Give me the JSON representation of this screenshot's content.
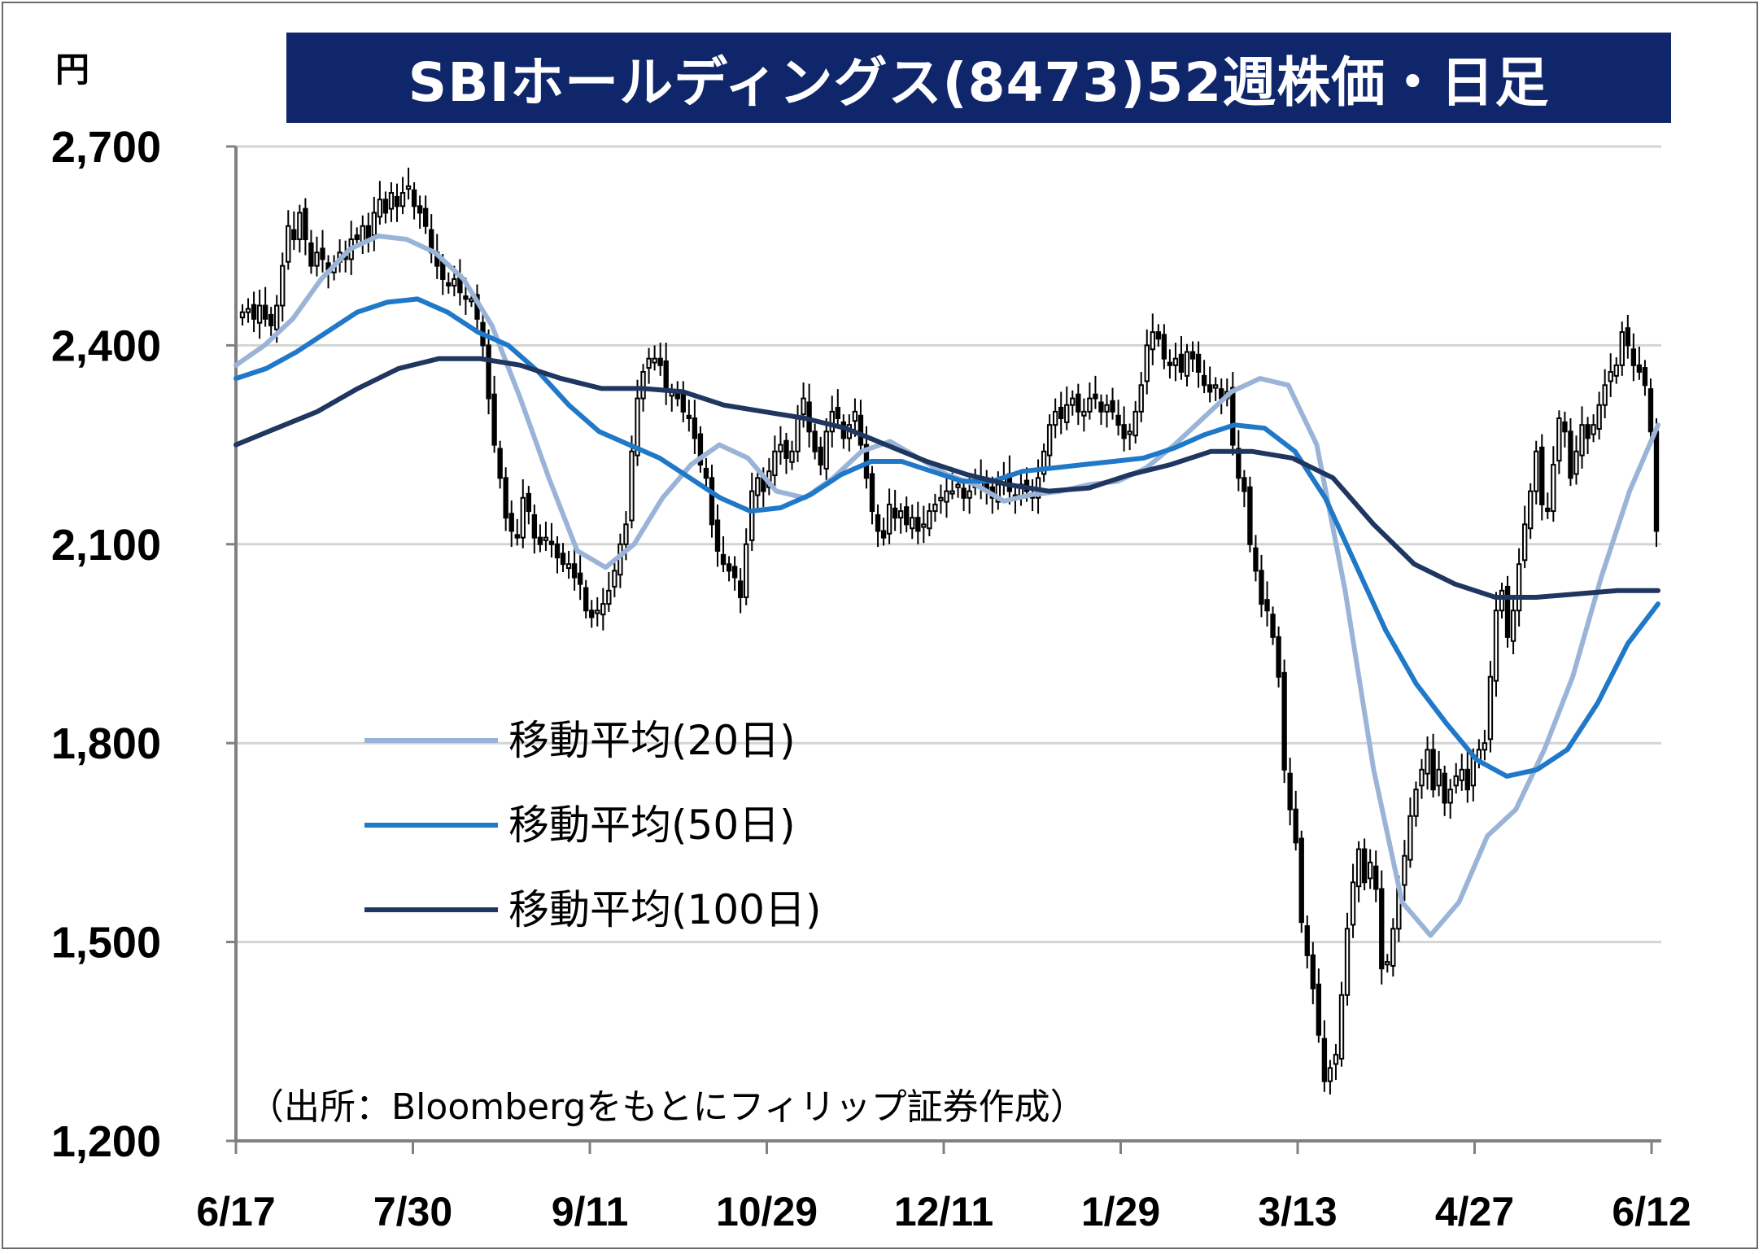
{
  "unit": "円",
  "chart_data": {
    "type": "candlestick",
    "title": "SBIホールディングス(8473)52週株価・日足",
    "ylim": [
      1200,
      2700
    ],
    "yticks": [
      1200,
      1500,
      1800,
      2100,
      2400,
      2700
    ],
    "ytick_labels": [
      "1,200",
      "1,500",
      "1,800",
      "2,100",
      "2,400",
      "2,700"
    ],
    "xtick_labels": [
      "6/17",
      "7/30",
      "9/11",
      "10/29",
      "12/11",
      "1/29",
      "3/13",
      "4/27",
      "6/12"
    ],
    "xlabel": "",
    "ylabel": "",
    "grid": true,
    "legend_position": "center-left",
    "source": "（出所：Bloombergをもとにフィリップ証券作成）",
    "candle_series": [
      {
        "x": "6/17",
        "price": [
          2450,
          2455,
          2440,
          2460,
          2440,
          2430,
          2460,
          2520,
          2580,
          2560,
          2600,
          2560,
          2520,
          2540,
          2530,
          2510,
          2520,
          2540,
          2530,
          2560,
          2560,
          2580,
          2560,
          2600,
          2620,
          2600,
          2630,
          2610,
          2630,
          2640,
          2610
        ]
      },
      {
        "x": "7/30",
        "price": [
          2600,
          2580,
          2540,
          2520,
          2500,
          2490,
          2500,
          2480,
          2470,
          2470,
          2440,
          2400,
          2320,
          2250,
          2200,
          2140,
          2120,
          2110,
          2170,
          2150,
          2110,
          2100,
          2110,
          2100,
          2080,
          2070,
          2070,
          2050,
          2040,
          2000,
          1990
        ]
      },
      {
        "x": "9/11",
        "price": [
          2000,
          2010,
          2030,
          2060,
          2100,
          2130,
          2240,
          2320,
          2360,
          2380,
          2380,
          2370,
          2330,
          2330,
          2320,
          2300,
          2290,
          2260,
          2220,
          2200,
          2130,
          2090,
          2070,
          2060,
          2050,
          2020,
          2100,
          2180,
          2200,
          2180,
          2210
        ]
      },
      {
        "x": "10/29",
        "price": [
          2240,
          2250,
          2230,
          2240,
          2290,
          2320,
          2270,
          2240,
          2220,
          2270,
          2300,
          2290,
          2260,
          2280,
          2300,
          2250,
          2200,
          2150,
          2120,
          2110,
          2160,
          2140,
          2150,
          2130,
          2140,
          2120,
          2130,
          2150,
          2160,
          2170,
          2180
        ]
      },
      {
        "x": "12/11",
        "price": [
          2180,
          2190,
          2170,
          2180,
          2190,
          2200,
          2180,
          2170,
          2190,
          2200,
          2180,
          2170,
          2190,
          2180,
          2170,
          2200,
          2240,
          2280,
          2300,
          2290,
          2310,
          2320,
          2300,
          2300,
          2320,
          2320,
          2300,
          2310,
          2300,
          2280,
          2260
        ]
      },
      {
        "x": "1/29",
        "price": [
          2270,
          2300,
          2340,
          2400,
          2420,
          2410,
          2380,
          2370,
          2380,
          2360,
          2390,
          2380,
          2360,
          2340,
          2330,
          2340,
          2320,
          2330,
          2250,
          2200,
          2180,
          2100,
          2060,
          2010,
          2000,
          1960,
          1900,
          1760,
          1700,
          1650,
          1530
        ]
      },
      {
        "x": "3/13",
        "price": [
          1480,
          1430,
          1360,
          1290,
          1310,
          1330,
          1420,
          1520,
          1590,
          1640,
          1590,
          1620,
          1580,
          1460,
          1470,
          1520,
          1580,
          1630,
          1690,
          1730,
          1760,
          1790,
          1730,
          1760,
          1710,
          1730,
          1750,
          1760,
          1730,
          1780,
          1790
        ]
      },
      {
        "x": "4/27",
        "price": [
          1800,
          1900,
          2000,
          2030,
          1960,
          2000,
          2070,
          2130,
          2180,
          2240,
          2160,
          2150,
          2220,
          2290,
          2270,
          2200,
          2240,
          2280,
          2260,
          2280,
          2310,
          2340,
          2360,
          2370,
          2420,
          2400,
          2370,
          2360,
          2340,
          2270,
          2120
        ]
      }
    ],
    "series": [
      {
        "name": "移動平均(20日)",
        "color": "#9ab4d8",
        "values": [
          2370,
          2400,
          2440,
          2500,
          2545,
          2565,
          2560,
          2540,
          2500,
          2430,
          2320,
          2200,
          2090,
          2065,
          2100,
          2170,
          2220,
          2250,
          2230,
          2180,
          2170,
          2200,
          2240,
          2255,
          2230,
          2205,
          2190,
          2165,
          2175,
          2180,
          2190,
          2195,
          2215,
          2250,
          2290,
          2330,
          2350,
          2340,
          2250,
          2030,
          1760,
          1560,
          1510,
          1560,
          1660,
          1700,
          1790,
          1900,
          2050,
          2180,
          2280
        ]
      },
      {
        "name": "移動平均(50日)",
        "color": "#1f78c8",
        "values": [
          2350,
          2365,
          2390,
          2420,
          2450,
          2465,
          2470,
          2450,
          2420,
          2400,
          2360,
          2310,
          2270,
          2250,
          2230,
          2200,
          2170,
          2150,
          2155,
          2175,
          2205,
          2225,
          2225,
          2210,
          2195,
          2195,
          2210,
          2215,
          2220,
          2225,
          2230,
          2245,
          2265,
          2280,
          2275,
          2240,
          2170,
          2070,
          1970,
          1890,
          1830,
          1775,
          1750,
          1760,
          1790,
          1860,
          1950,
          2010
        ]
      },
      {
        "name": "移動平均(100日)",
        "color": "#1e3660",
        "values": [
          2250,
          2275,
          2300,
          2335,
          2365,
          2380,
          2380,
          2370,
          2350,
          2335,
          2335,
          2330,
          2310,
          2300,
          2290,
          2275,
          2250,
          2225,
          2205,
          2190,
          2180,
          2185,
          2205,
          2220,
          2240,
          2240,
          2230,
          2200,
          2130,
          2070,
          2040,
          2020,
          2020,
          2025,
          2030,
          2030
        ]
      }
    ]
  }
}
